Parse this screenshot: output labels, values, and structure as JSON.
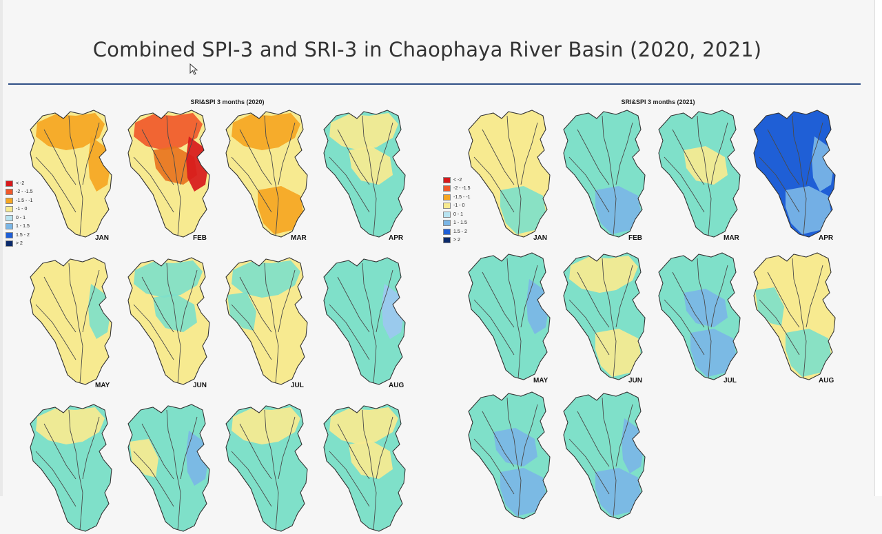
{
  "slide": {
    "title": "Combined SPI-3 and SRI-3 in Chaophaya River Basin (2020, 2021)"
  },
  "legend": {
    "items": [
      {
        "label": "< -2",
        "color": "#d7191c"
      },
      {
        "label": "-2 - -1.5",
        "color": "#f0592b"
      },
      {
        "label": "-1.5 - -1",
        "color": "#f5a623"
      },
      {
        "label": "-1 - 0",
        "color": "#f7ea90"
      },
      {
        "label": "0 - 1",
        "color": "#b8e3f0"
      },
      {
        "label": "1 - 1.5",
        "color": "#7bb6e6"
      },
      {
        "label": "1.5 - 2",
        "color": "#1f5fd6"
      },
      {
        "label": "> 2",
        "color": "#0b2a6b"
      }
    ]
  },
  "panels": [
    {
      "title": "SRI&SPI 3 months (2020)",
      "maps": [
        {
          "month": "JAN",
          "fill": "#f7ea90",
          "blobs": [
            {
              "color": "#f5a623",
              "shape": "north"
            },
            {
              "color": "#f5a623",
              "shape": "east"
            }
          ]
        },
        {
          "month": "FEB",
          "fill": "#f7ea90",
          "blobs": [
            {
              "color": "#f0592b",
              "shape": "north"
            },
            {
              "color": "#e8741f",
              "shape": "mid"
            },
            {
              "color": "#d7191c",
              "shape": "east"
            }
          ]
        },
        {
          "month": "MAR",
          "fill": "#f7ea90",
          "blobs": [
            {
              "color": "#f5a623",
              "shape": "north"
            },
            {
              "color": "#f5a623",
              "shape": "south"
            }
          ]
        },
        {
          "month": "APR",
          "fill": "#7fe0c9",
          "blobs": [
            {
              "color": "#f7ea90",
              "shape": "north"
            },
            {
              "color": "#f7ea90",
              "shape": "mid"
            }
          ]
        },
        {
          "month": "MAY",
          "fill": "#f7ea90",
          "blobs": [
            {
              "color": "#7fe0c9",
              "shape": "east"
            }
          ]
        },
        {
          "month": "JUN",
          "fill": "#f7ea90",
          "blobs": [
            {
              "color": "#7fe0c9",
              "shape": "north"
            },
            {
              "color": "#7fe0c9",
              "shape": "mid"
            }
          ]
        },
        {
          "month": "JUL",
          "fill": "#f7ea90",
          "blobs": [
            {
              "color": "#7fe0c9",
              "shape": "west"
            },
            {
              "color": "#7fe0c9",
              "shape": "north"
            }
          ]
        },
        {
          "month": "AUG",
          "fill": "#7fe0c9",
          "blobs": [
            {
              "color": "#9cc8f0",
              "shape": "east"
            }
          ]
        },
        {
          "month": "",
          "fill": "#7fe0c9",
          "blobs": [
            {
              "color": "#f7ea90",
              "shape": "north"
            }
          ]
        },
        {
          "month": "",
          "fill": "#7fe0c9",
          "blobs": [
            {
              "color": "#f7ea90",
              "shape": "west"
            },
            {
              "color": "#7bb6e6",
              "shape": "east"
            }
          ]
        },
        {
          "month": "",
          "fill": "#7fe0c9",
          "blobs": [
            {
              "color": "#f7ea90",
              "shape": "north"
            }
          ]
        },
        {
          "month": "",
          "fill": "#7fe0c9",
          "blobs": [
            {
              "color": "#f7ea90",
              "shape": "north"
            },
            {
              "color": "#f7ea90",
              "shape": "mid"
            }
          ]
        }
      ]
    },
    {
      "title": "SRI&SPI 3 months (2021)",
      "maps": [
        {
          "month": "JAN",
          "fill": "#f7ea90",
          "blobs": [
            {
              "color": "#7fe0c9",
              "shape": "south"
            }
          ]
        },
        {
          "month": "FEB",
          "fill": "#7fe0c9",
          "blobs": [
            {
              "color": "#7bb6e6",
              "shape": "south"
            }
          ]
        },
        {
          "month": "MAR",
          "fill": "#7fe0c9",
          "blobs": [
            {
              "color": "#f7ea90",
              "shape": "mid"
            }
          ]
        },
        {
          "month": "APR",
          "fill": "#1f5fd6",
          "blobs": [
            {
              "color": "#7bb6e6",
              "shape": "south"
            },
            {
              "color": "#7bb6e6",
              "shape": "east"
            }
          ]
        },
        {
          "month": "MAY",
          "fill": "#7fe0c9",
          "blobs": [
            {
              "color": "#7bb6e6",
              "shape": "east"
            }
          ]
        },
        {
          "month": "JUN",
          "fill": "#7fe0c9",
          "blobs": [
            {
              "color": "#f7ea90",
              "shape": "north"
            },
            {
              "color": "#f7ea90",
              "shape": "south"
            }
          ]
        },
        {
          "month": "JUL",
          "fill": "#7fe0c9",
          "blobs": [
            {
              "color": "#7bb6e6",
              "shape": "south"
            },
            {
              "color": "#7bb6e6",
              "shape": "mid"
            }
          ]
        },
        {
          "month": "AUG",
          "fill": "#f7ea90",
          "blobs": [
            {
              "color": "#7fe0c9",
              "shape": "south"
            },
            {
              "color": "#7fe0c9",
              "shape": "west"
            }
          ]
        },
        {
          "month": "",
          "fill": "#7fe0c9",
          "blobs": [
            {
              "color": "#7bb6e6",
              "shape": "south"
            },
            {
              "color": "#7bb6e6",
              "shape": "mid"
            }
          ]
        },
        {
          "month": "",
          "fill": "#7fe0c9",
          "blobs": [
            {
              "color": "#7bb6e6",
              "shape": "south"
            },
            {
              "color": "#7bb6e6",
              "shape": "east"
            }
          ]
        }
      ]
    }
  ]
}
